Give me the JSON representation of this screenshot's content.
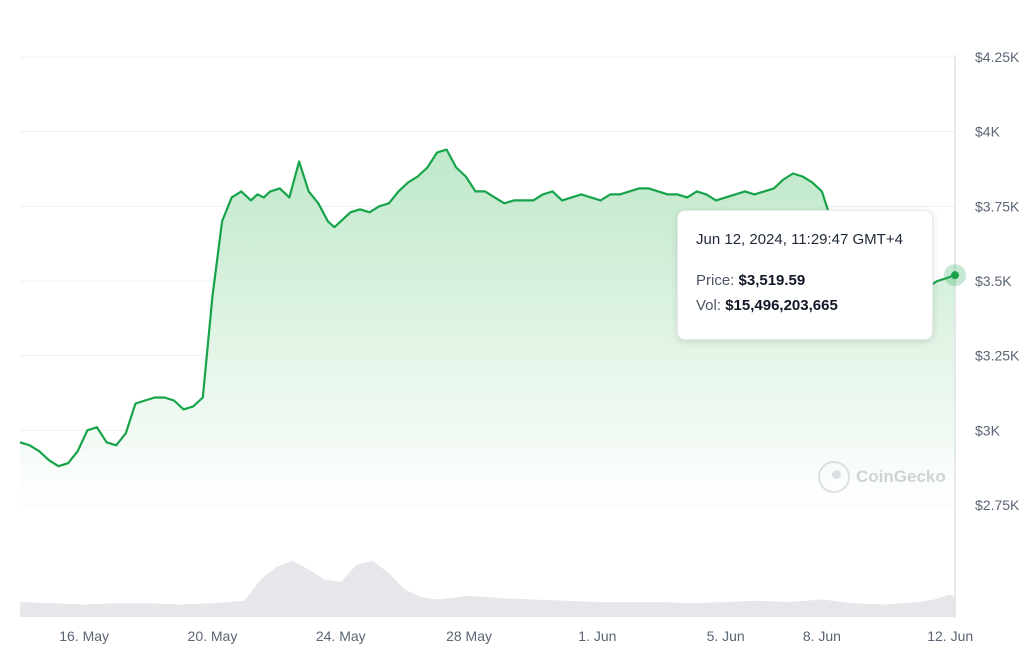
{
  "chart_data": {
    "type": "area",
    "y_ticks": [
      "$4.25K",
      "$4K",
      "$3.75K",
      "$3.5K",
      "$3.25K",
      "$3K",
      "$2.75K"
    ],
    "y_tick_values": [
      4250,
      4000,
      3750,
      3500,
      3250,
      3000,
      2750
    ],
    "x_ticks": [
      "16. May",
      "20. May",
      "24. May",
      "28 May",
      "1. Jun",
      "5. Jun",
      "8. Jun",
      "12. Jun"
    ],
    "x_tick_days": [
      2,
      6,
      10,
      14,
      18,
      22,
      25,
      29
    ],
    "x_start": "14 May 2024",
    "ylim": [
      2750,
      4250
    ],
    "price_series": {
      "x_days": [
        0,
        0.3,
        0.6,
        0.9,
        1.2,
        1.5,
        1.8,
        2.1,
        2.4,
        2.7,
        3.0,
        3.3,
        3.6,
        3.9,
        4.2,
        4.5,
        4.8,
        5.1,
        5.4,
        5.7,
        6.0,
        6.3,
        6.6,
        6.9,
        7.2,
        7.4,
        7.6,
        7.8,
        8.1,
        8.4,
        8.7,
        9.0,
        9.3,
        9.6,
        9.8,
        10.0,
        10.3,
        10.6,
        10.9,
        11.2,
        11.5,
        11.8,
        12.1,
        12.4,
        12.7,
        13.0,
        13.3,
        13.6,
        13.9,
        14.2,
        14.5,
        14.8,
        15.1,
        15.4,
        15.7,
        16.0,
        16.3,
        16.6,
        16.9,
        17.2,
        17.5,
        17.8,
        18.1,
        18.4,
        18.7,
        19.0,
        19.3,
        19.6,
        19.9,
        20.2,
        20.5,
        20.8,
        21.1,
        21.4,
        21.7,
        22.0,
        22.3,
        22.6,
        22.9,
        23.2,
        23.5,
        23.8,
        24.1,
        24.4,
        24.7,
        25.0,
        25.3,
        25.6,
        25.9,
        26.2,
        26.5,
        26.8,
        27.1,
        27.4,
        27.7,
        28.0,
        28.3,
        28.6,
        28.9,
        29.15
      ],
      "price": [
        2960,
        2950,
        2930,
        2900,
        2880,
        2890,
        2930,
        3000,
        3010,
        2960,
        2950,
        2990,
        3090,
        3100,
        3110,
        3110,
        3100,
        3070,
        3080,
        3110,
        3450,
        3700,
        3780,
        3800,
        3770,
        3790,
        3780,
        3800,
        3810,
        3780,
        3900,
        3800,
        3760,
        3700,
        3680,
        3700,
        3730,
        3740,
        3730,
        3750,
        3760,
        3800,
        3830,
        3850,
        3880,
        3930,
        3940,
        3880,
        3850,
        3800,
        3800,
        3780,
        3760,
        3770,
        3770,
        3770,
        3790,
        3800,
        3770,
        3780,
        3790,
        3780,
        3770,
        3790,
        3790,
        3800,
        3810,
        3810,
        3800,
        3790,
        3790,
        3780,
        3800,
        3790,
        3770,
        3780,
        3790,
        3800,
        3790,
        3800,
        3810,
        3840,
        3860,
        3850,
        3830,
        3800,
        3700,
        3640,
        3600,
        3570,
        3540,
        3530,
        3550,
        3570,
        3530,
        3460,
        3480,
        3500,
        3510,
        3519.59
      ]
    },
    "volume_series": {
      "x_days": [
        0,
        1,
        2,
        3,
        4,
        5,
        6,
        7,
        7.5,
        8,
        8.5,
        9,
        9.5,
        10,
        10.5,
        11,
        11.5,
        12,
        12.5,
        13,
        14,
        15,
        16,
        17,
        18,
        19,
        20,
        21,
        22,
        23,
        24,
        25,
        26,
        27,
        28,
        28.5,
        29,
        29.15
      ],
      "volume_bn": [
        12,
        11,
        10,
        11,
        11,
        10,
        11,
        13,
        30,
        40,
        45,
        38,
        30,
        28,
        42,
        45,
        35,
        22,
        16,
        14,
        17,
        15,
        14,
        13,
        12,
        12,
        12,
        11,
        12,
        13,
        12,
        14,
        11,
        10,
        12,
        14,
        18,
        15.5
      ]
    },
    "tooltip": {
      "date": "Jun 12, 2024, 11:29:47 GMT+4",
      "price_label": "Price:",
      "price_value": "$3,519.59",
      "vol_label": "Vol:",
      "vol_value": "$15,496,203,665"
    },
    "watermark": "CoinGecko",
    "colors": {
      "line": "#16a34a",
      "area_top": "#bfe8c9",
      "area_bottom": "#ffffff",
      "volume_fill": "#e5e7eb",
      "tick_text": "#5b6576"
    }
  }
}
